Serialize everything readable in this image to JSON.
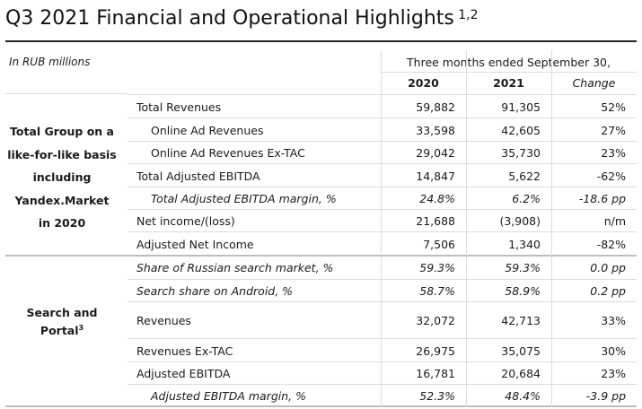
{
  "title": "Q3 2021 Financial and Operational Highlights",
  "title_sup": "1,2",
  "units": "In RUB millions",
  "period": "Three months ended September 30,",
  "col_2020": "2020",
  "col_2021": "2021",
  "col_change": "Change",
  "group1": [
    "Total Group on a",
    "like-for-like basis",
    "including",
    "Yandex.Market",
    "in 2020"
  ],
  "group2_line1": "Search and",
  "group2_line2": "Portal",
  "group2_sup": "3",
  "rows": [
    {
      "label": "Total Revenues",
      "v2020": "59,882",
      "v2021": "91,305",
      "change": "52%"
    },
    {
      "label": "Online Ad Revenues",
      "v2020": "33,598",
      "v2021": "42,605",
      "change": "27%"
    },
    {
      "label": "Online Ad Revenues Ex-TAC",
      "v2020": "29,042",
      "v2021": "35,730",
      "change": "23%"
    },
    {
      "label": "Total Adjusted EBITDA",
      "v2020": "14,847",
      "v2021": "5,622",
      "change": "-62%"
    },
    {
      "label": "Total Adjusted EBITDA margin, %",
      "v2020": "24.8%",
      "v2021": "6.2%",
      "change": "-18.6 pp"
    },
    {
      "label": "Net income/(loss)",
      "v2020": "21,688",
      "v2021": "(3,908)",
      "change": "n/m"
    },
    {
      "label": "Adjusted Net Income",
      "v2020": "7,506",
      "v2021": "1,340",
      "change": "-82%"
    },
    {
      "label": "Share of Russian search market, %",
      "v2020": "59.3%",
      "v2021": "59.3%",
      "change": "0.0 pp"
    },
    {
      "label": "Search share on Android, %",
      "v2020": "58.7%",
      "v2021": "58.9%",
      "change": "0.2 pp"
    },
    {
      "label": "Revenues",
      "v2020": "32,072",
      "v2021": "42,713",
      "change": "33%"
    },
    {
      "label": "Revenues Ex-TAC",
      "v2020": "26,975",
      "v2021": "35,075",
      "change": "30%"
    },
    {
      "label": "Adjusted EBITDA",
      "v2020": "16,781",
      "v2021": "20,684",
      "change": "23%"
    },
    {
      "label": "Adjusted EBITDA margin, %",
      "v2020": "52.3%",
      "v2021": "48.4%",
      "change": "-3.9 pp"
    }
  ]
}
